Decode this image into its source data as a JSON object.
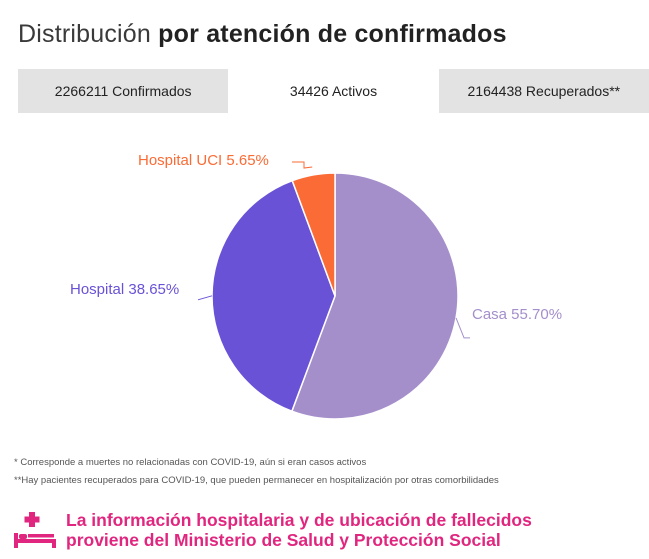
{
  "title": {
    "light": "Distribución",
    "bold": "por atención de confirmados"
  },
  "tabs": [
    {
      "label": "2266211 Confirmados",
      "active": false
    },
    {
      "label": "34426 Activos",
      "active": true
    },
    {
      "label": "2164438 Recuperados**",
      "active": false
    }
  ],
  "chart_data": {
    "type": "pie",
    "title": "",
    "slices": [
      {
        "name": "Casa",
        "label": "Casa 55.70%",
        "value": 55.7,
        "color": "#a48fcb"
      },
      {
        "name": "Hospital",
        "label": "Hospital 38.65%",
        "value": 38.65,
        "color": "#6a52d6"
      },
      {
        "name": "Hospital UCI",
        "label": "Hospital UCI 5.65%",
        "value": 5.65,
        "color": "#fb6b35"
      }
    ],
    "legend": "none"
  },
  "notes": [
    "* Corresponde a muertes no relacionadas con COVID-19, aún si eran casos activos",
    "**Hay pacientes recuperados para COVID-19, que pueden permanecer en hospitalización por otras comorbilidades"
  ],
  "info": {
    "icon": "hospital-bed-icon",
    "line1": "La información hospitalaria y de ubicación de fallecidos",
    "line2": "proviene del Ministerio de Salud y Protección Social",
    "color": "#e0267f"
  }
}
